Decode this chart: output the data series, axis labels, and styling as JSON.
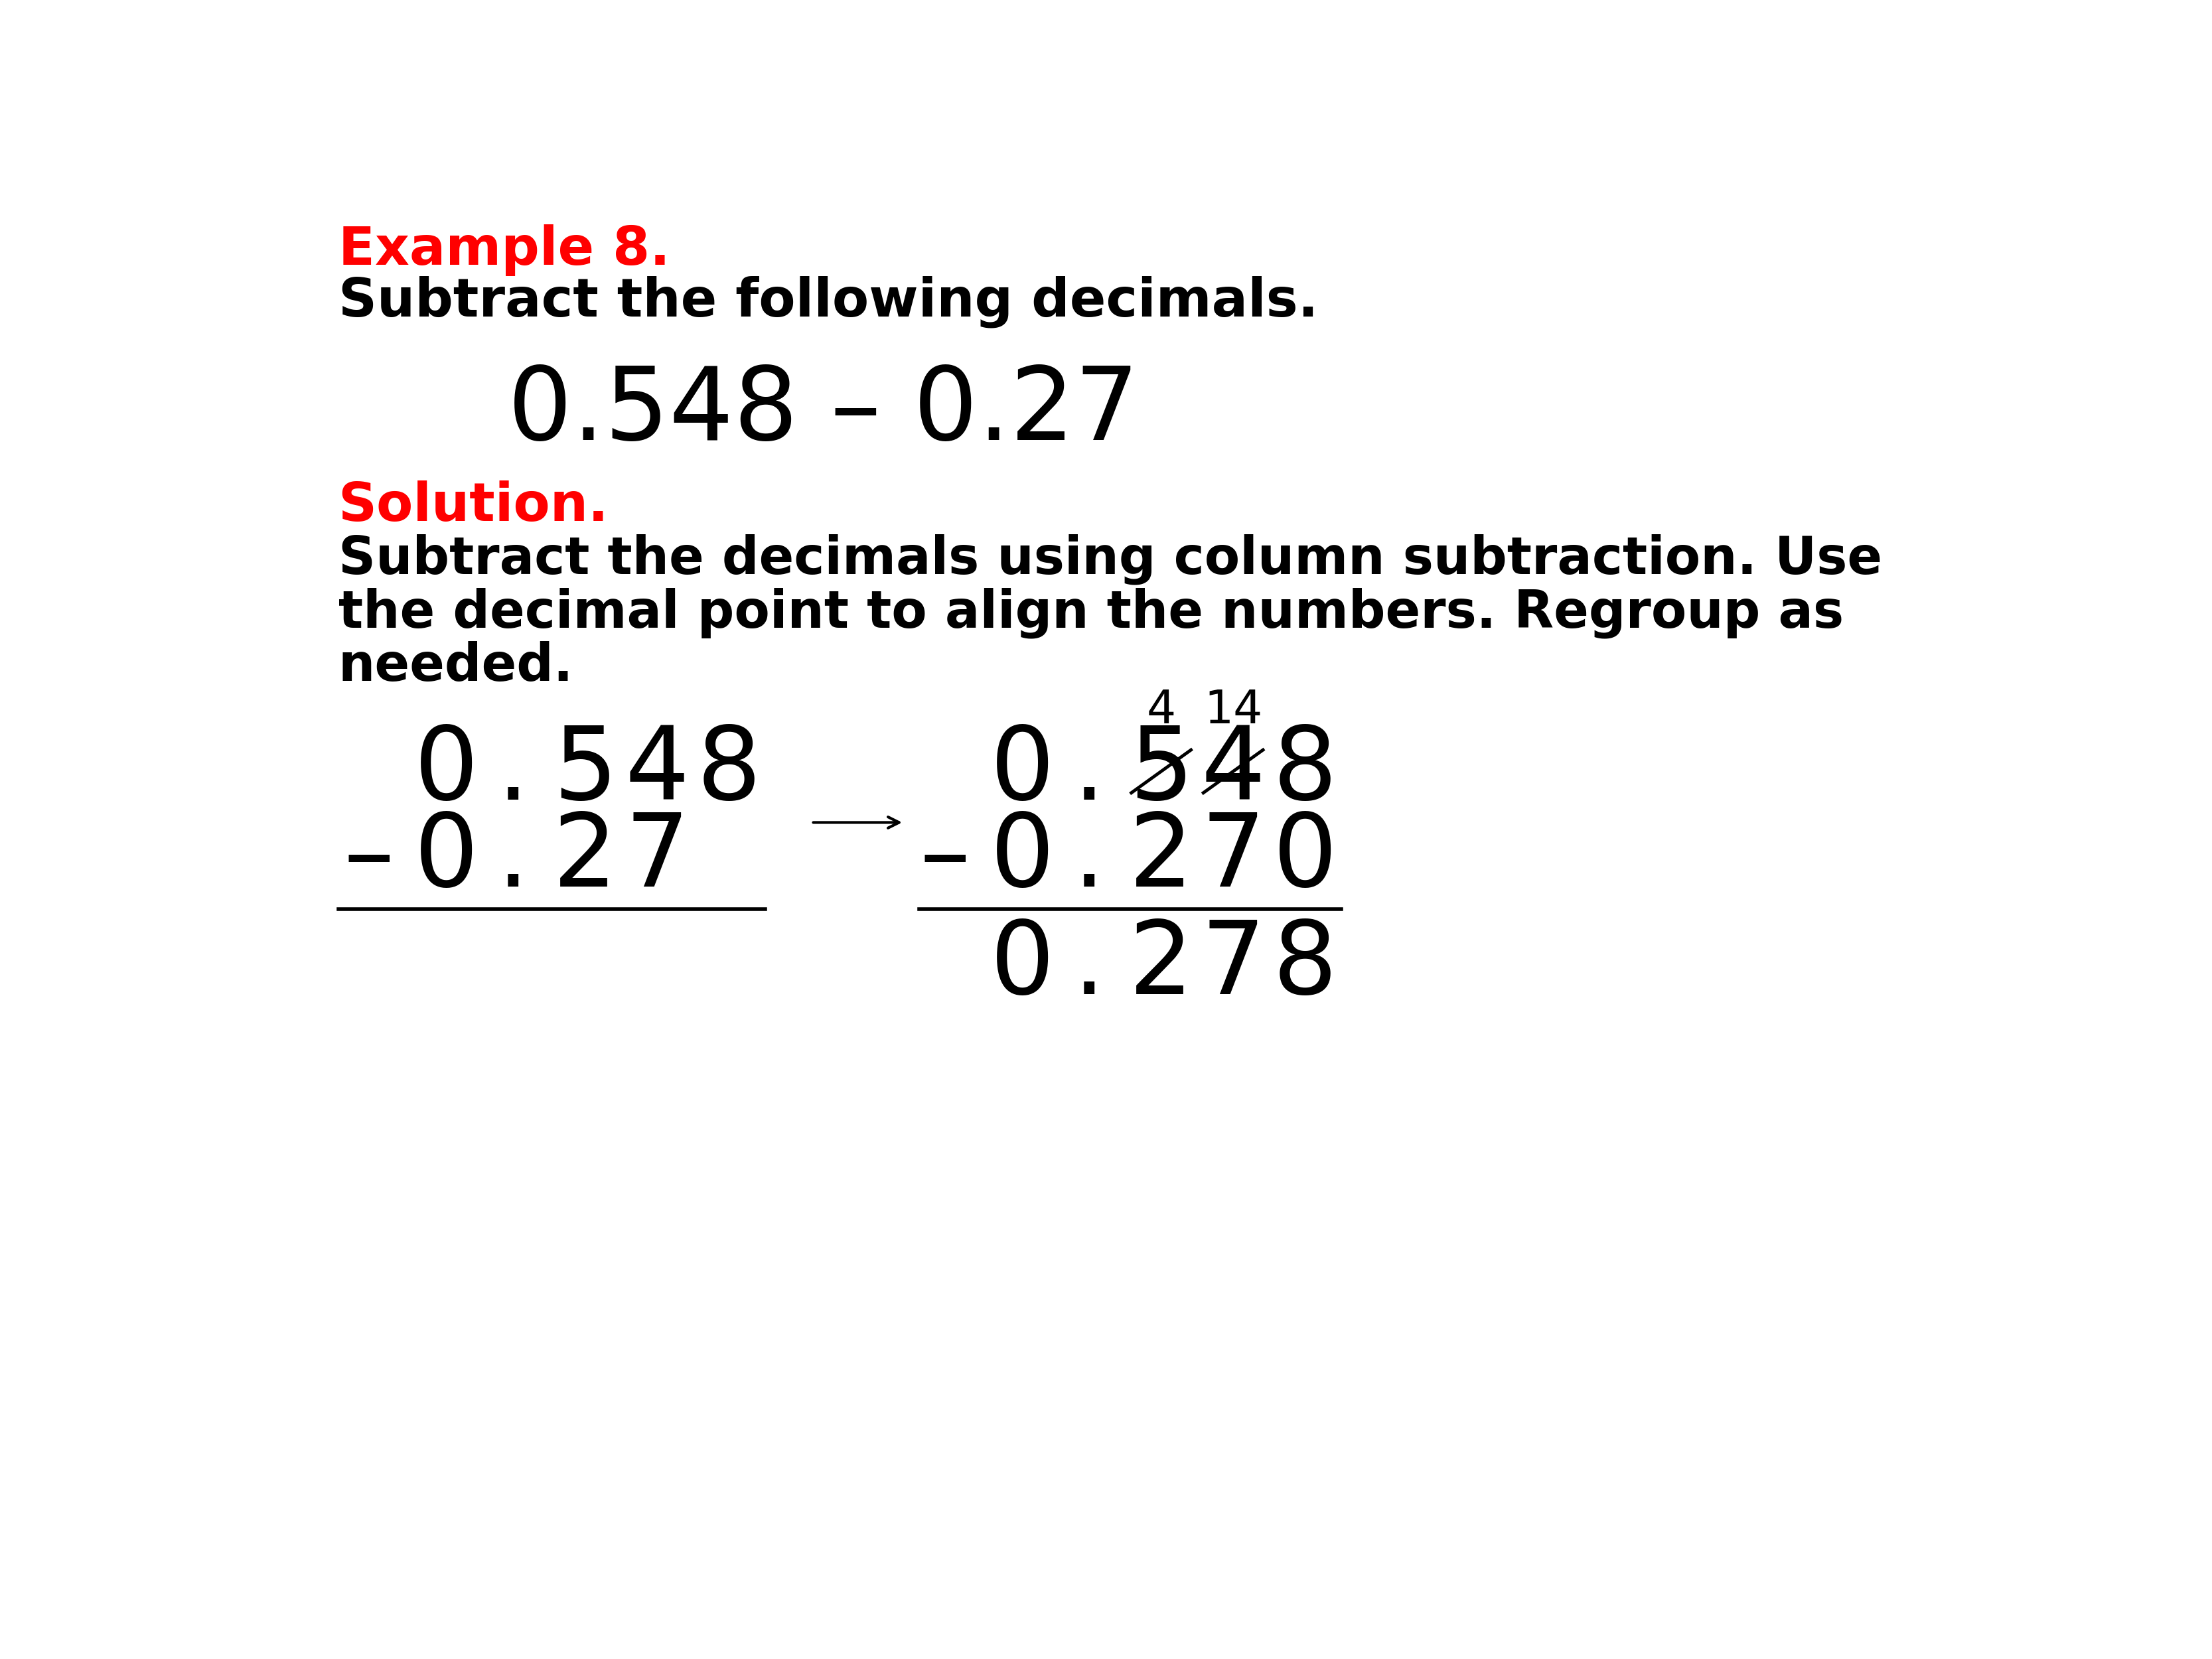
{
  "bg_color": "#ffffff",
  "title_line1": "Example 8.",
  "title_line2": "Subtract the following decimals.",
  "title_color": "#ff0000",
  "subtitle_color": "#000000",
  "problem_text": "0.548 – 0.27",
  "solution_label": "Solution.",
  "solution_color": "#ff0000",
  "solution_text_line1": "Subtract the decimals using column subtraction. Use",
  "solution_text_line2": "the decimal point to align the numbers. Regroup as",
  "solution_text_line3": "needed.",
  "solution_text_color": "#000000",
  "left_col": {
    "row1": [
      "",
      "0",
      ".",
      "5",
      "4",
      "8"
    ],
    "row2": [
      "–",
      "0",
      ".",
      "2",
      "7",
      ""
    ]
  },
  "right_col": {
    "regroup_row": [
      "",
      "",
      "",
      "4",
      "14",
      ""
    ],
    "row1": [
      "",
      "0",
      ".",
      "5",
      "4",
      "8"
    ],
    "row1_strikethrough": [
      false,
      false,
      false,
      true,
      true,
      false
    ],
    "row2": [
      "–",
      "0",
      ".",
      "2",
      "7",
      "0"
    ],
    "row3": [
      "",
      "0",
      ".",
      "2",
      "7",
      "8"
    ]
  },
  "font_size_header": 58,
  "font_size_problem": 110,
  "font_size_solution_text": 56,
  "font_size_column": 110,
  "font_size_regroup": 50
}
